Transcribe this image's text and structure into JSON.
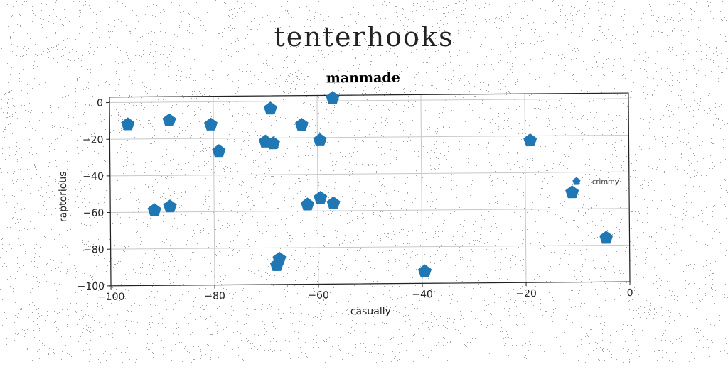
{
  "page": {
    "title": "tenterhooks"
  },
  "chart_data": {
    "type": "scatter",
    "title": "manmade",
    "xlabel": "casually",
    "ylabel": "raptorious",
    "xlim": [
      -100,
      0
    ],
    "ylim": [
      -100,
      3
    ],
    "xticks": [
      -100,
      -80,
      -60,
      -40,
      -20,
      0
    ],
    "yticks": [
      0,
      -20,
      -40,
      -60,
      -80,
      -100
    ],
    "grid": true,
    "legend_position": "center-right",
    "marker": "pentagon",
    "color": "#1f77b4",
    "series": [
      {
        "name": "crimmy",
        "points": [
          {
            "x": -96.5,
            "y": -12
          },
          {
            "x": -88.5,
            "y": -10
          },
          {
            "x": -80.5,
            "y": -12.5
          },
          {
            "x": -79,
            "y": -27
          },
          {
            "x": -70,
            "y": -22
          },
          {
            "x": -68.5,
            "y": -23
          },
          {
            "x": -69,
            "y": -4
          },
          {
            "x": -63,
            "y": -13
          },
          {
            "x": -59.5,
            "y": -21.5
          },
          {
            "x": -57,
            "y": 1.5
          },
          {
            "x": -91.5,
            "y": -59
          },
          {
            "x": -88.5,
            "y": -57
          },
          {
            "x": -62,
            "y": -56.5
          },
          {
            "x": -59.5,
            "y": -53
          },
          {
            "x": -57,
            "y": -56
          },
          {
            "x": -67.5,
            "y": -86
          },
          {
            "x": -68,
            "y": -89.5
          },
          {
            "x": -39.5,
            "y": -93.5
          },
          {
            "x": -19,
            "y": -22.5
          },
          {
            "x": -11,
            "y": -51
          },
          {
            "x": -4.5,
            "y": -76
          }
        ]
      }
    ]
  }
}
